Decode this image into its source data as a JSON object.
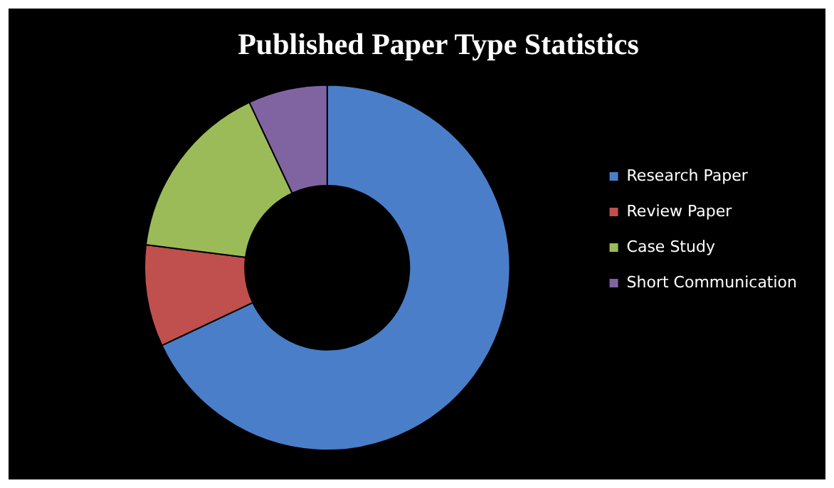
{
  "chart_data": {
    "type": "donut",
    "title": "Published Paper Type Statistics",
    "categories": [
      "Research Paper",
      "Review Paper",
      "Case Study",
      "Short Communication"
    ],
    "values": [
      68,
      9,
      16,
      7
    ],
    "colors": [
      "#4a7ec8",
      "#c0504d",
      "#9bbb59",
      "#8064a2"
    ],
    "legend": "right"
  }
}
